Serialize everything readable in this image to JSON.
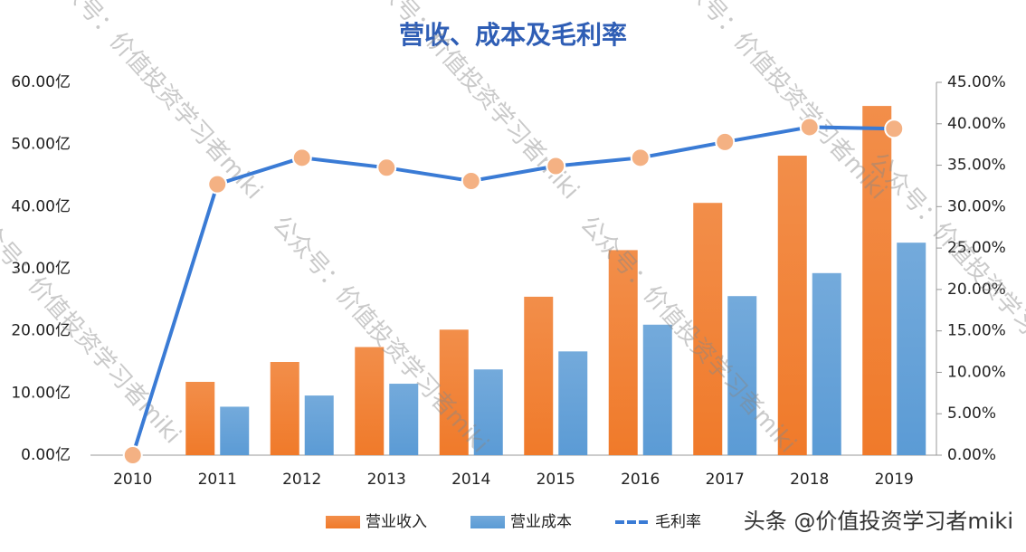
{
  "chart_data": {
    "type": "bar_line",
    "title": "营收、成本及毛利率",
    "categories": [
      "2010",
      "2011",
      "2012",
      "2013",
      "2014",
      "2015",
      "2016",
      "2017",
      "2018",
      "2019"
    ],
    "series": [
      {
        "name": "营业收入",
        "type": "bar",
        "color": "#f07a2a",
        "values": [
          0,
          11.8,
          15.0,
          17.4,
          20.2,
          25.5,
          33.0,
          40.6,
          48.2,
          56.2
        ]
      },
      {
        "name": "营业成本",
        "type": "bar",
        "color": "#5b9bd5",
        "values": [
          0,
          7.8,
          9.6,
          11.5,
          13.8,
          16.7,
          21.0,
          25.6,
          29.3,
          34.2
        ]
      },
      {
        "name": "毛利率",
        "type": "line",
        "axis": "y2",
        "color": "#3a7bd5",
        "marker_color": "#f4b183",
        "values": [
          0,
          32.7,
          35.9,
          34.7,
          33.1,
          34.9,
          35.9,
          37.8,
          39.6,
          39.4
        ]
      }
    ],
    "ylim": [
      0,
      60
    ],
    "yticks": [
      {
        "value": 0,
        "label": "0.00亿"
      },
      {
        "value": 10,
        "label": "10.00亿"
      },
      {
        "value": 20,
        "label": "20.00亿"
      },
      {
        "value": 30,
        "label": "30.00亿"
      },
      {
        "value": 40,
        "label": "40.00亿"
      },
      {
        "value": 50,
        "label": "50.00亿"
      },
      {
        "value": 60,
        "label": "60.00亿"
      }
    ],
    "y2lim": [
      0,
      45
    ],
    "y2ticks": [
      {
        "value": 0,
        "label": "0.00%"
      },
      {
        "value": 5,
        "label": "5.00%"
      },
      {
        "value": 10,
        "label": "10.00%"
      },
      {
        "value": 15,
        "label": "15.00%"
      },
      {
        "value": 20,
        "label": "20.00%"
      },
      {
        "value": 25,
        "label": "25.00%"
      },
      {
        "value": 30,
        "label": "30.00%"
      },
      {
        "value": 35,
        "label": "35.00%"
      },
      {
        "value": 40,
        "label": "40.00%"
      },
      {
        "value": 45,
        "label": "45.00%"
      }
    ],
    "legend": "bottom",
    "watermarks": [
      "公众号：价值投资学习者miki",
      "头条 @价值投资学习者miki"
    ]
  }
}
